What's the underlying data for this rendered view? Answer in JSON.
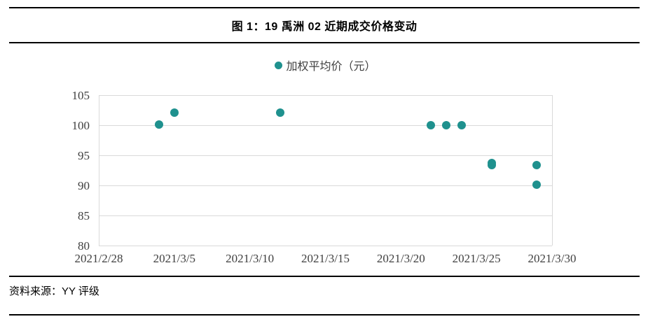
{
  "header": {
    "title": "图 1：19 禹洲 02 近期成交价格变动"
  },
  "footer": {
    "source_label": "资料来源：YY 评级"
  },
  "colors": {
    "accent_teal": "#1F918E",
    "gridline": "#D9D9D9",
    "axis_text": "#3F3F3F",
    "rule": "#000000"
  },
  "chart_data": {
    "type": "scatter",
    "title": "图 1：19 禹洲 02 近期成交价格变动",
    "legend": [
      {
        "label": "加权平均价（元）",
        "marker": "circle-icon",
        "color": "#1F918E"
      }
    ],
    "legend_position": "top-center",
    "grid": "horizontal",
    "xlim": [
      "2021/2/28",
      "2021/3/30"
    ],
    "ylim": [
      80,
      105
    ],
    "x_ticks": [
      "2021/2/28",
      "2021/3/5",
      "2021/3/10",
      "2021/3/15",
      "2021/3/20",
      "2021/3/25",
      "2021/3/30"
    ],
    "y_ticks": [
      105,
      100,
      95,
      90,
      85,
      80
    ],
    "series": [
      {
        "name": "加权平均价（元）",
        "color": "#1F918E",
        "points": [
          {
            "date": "2021/3/4",
            "value": 100.1
          },
          {
            "date": "2021/3/5",
            "value": 102.1
          },
          {
            "date": "2021/3/12",
            "value": 102.1
          },
          {
            "date": "2021/3/22",
            "value": 100.0
          },
          {
            "date": "2021/3/23",
            "value": 100.0
          },
          {
            "date": "2021/3/24",
            "value": 100.0
          },
          {
            "date": "2021/3/26",
            "value": 93.7
          },
          {
            "date": "2021/3/26",
            "value": 93.4
          },
          {
            "date": "2021/3/29",
            "value": 93.4
          },
          {
            "date": "2021/3/29",
            "value": 90.1
          }
        ]
      }
    ]
  }
}
